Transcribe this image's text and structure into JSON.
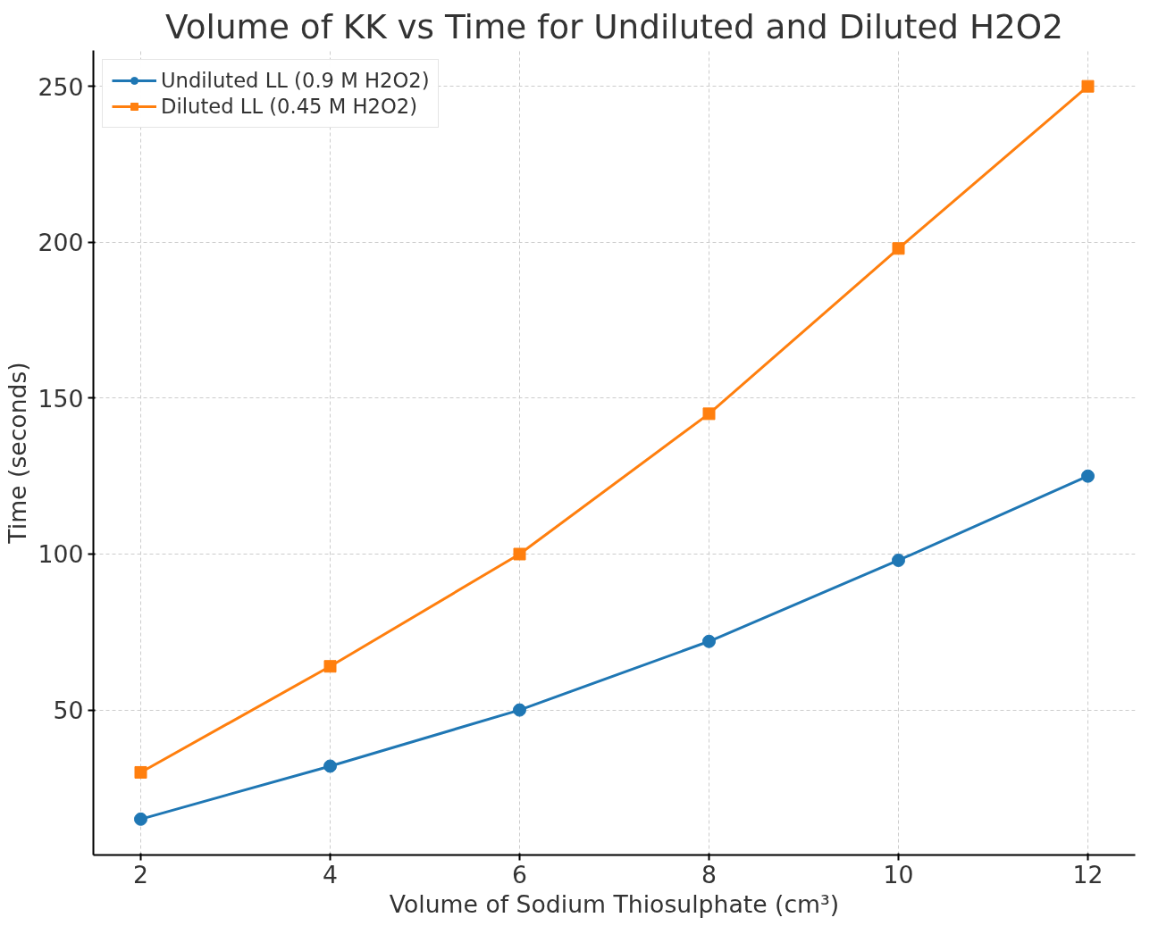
{
  "chart_data": {
    "type": "line",
    "title": "Volume of KK vs Time for Undiluted and Diluted H2O2",
    "xlabel": "Volume of Sodium Thiosulphate (cm³)",
    "ylabel": "Time (seconds)",
    "x": [
      2,
      4,
      6,
      8,
      10,
      12
    ],
    "series": [
      {
        "name": "Undiluted LL (0.9 M H2O2)",
        "color": "#1f77b4",
        "marker": "circle",
        "values": [
          15,
          32,
          50,
          72,
          98,
          125
        ]
      },
      {
        "name": "Diluted LL (0.45 M H2O2)",
        "color": "#ff7f0e",
        "marker": "square",
        "values": [
          30,
          64,
          100,
          145,
          198,
          250
        ]
      }
    ],
    "xlim": [
      1.5,
      12.5
    ],
    "ylim": [
      3.5,
      261.5
    ],
    "xticks": [
      2,
      4,
      6,
      8,
      10,
      12
    ],
    "yticks": [
      50,
      100,
      150,
      200,
      250
    ],
    "grid": true,
    "legend": "top left",
    "line_style": "solid"
  }
}
